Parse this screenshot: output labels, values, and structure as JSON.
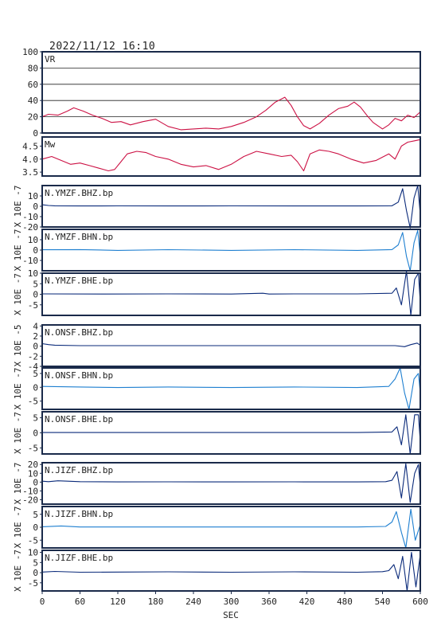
{
  "header": {
    "title": "2022/11/12  16:10"
  },
  "chart_data": {
    "type": "line",
    "xlabel": "SEC",
    "x_ticks": [
      0,
      60,
      120,
      180,
      240,
      300,
      360,
      420,
      480,
      540,
      600
    ],
    "xlim": [
      0,
      600
    ],
    "colors": {
      "vr_mw": "#cc1144",
      "bhz": "#0a2a7a",
      "bhn": "#1e7fd0",
      "bhe": "#0a2a7a",
      "frame": "#1a2a4a"
    },
    "panels": [
      {
        "label": "VR",
        "ylim": [
          0,
          100
        ],
        "ticks": [
          0,
          20,
          40,
          60,
          80,
          100
        ],
        "grid": true,
        "color": "vr_mw",
        "x": [
          0,
          10,
          25,
          40,
          50,
          65,
          80,
          95,
          110,
          125,
          140,
          160,
          180,
          200,
          220,
          240,
          260,
          280,
          300,
          320,
          340,
          355,
          370,
          385,
          395,
          405,
          415,
          425,
          440,
          455,
          470,
          485,
          495,
          505,
          515,
          525,
          540,
          550,
          560,
          570,
          580,
          590,
          600
        ],
        "y": [
          20,
          23,
          22,
          27,
          31,
          27,
          22,
          18,
          13,
          14,
          10,
          14,
          17,
          8,
          4,
          5,
          6,
          5,
          8,
          13,
          20,
          28,
          38,
          44,
          34,
          20,
          9,
          5,
          12,
          22,
          30,
          33,
          38,
          32,
          22,
          13,
          5,
          10,
          18,
          15,
          22,
          19,
          26
        ]
      },
      {
        "label": "Mw",
        "ylim": [
          3.35,
          4.85
        ],
        "ticks": [
          3.5,
          4.0,
          4.5
        ],
        "grid": false,
        "color": "vr_mw",
        "x": [
          0,
          15,
          30,
          45,
          60,
          75,
          90,
          105,
          115,
          125,
          135,
          150,
          165,
          180,
          200,
          220,
          240,
          260,
          280,
          300,
          320,
          340,
          360,
          380,
          395,
          405,
          415,
          425,
          440,
          455,
          470,
          490,
          510,
          530,
          550,
          560,
          570,
          580,
          590,
          600
        ],
        "y": [
          4.0,
          4.1,
          3.95,
          3.8,
          3.85,
          3.75,
          3.65,
          3.55,
          3.6,
          3.9,
          4.2,
          4.3,
          4.25,
          4.1,
          4.0,
          3.8,
          3.7,
          3.75,
          3.6,
          3.8,
          4.1,
          4.3,
          4.2,
          4.1,
          4.15,
          3.9,
          3.55,
          4.2,
          4.35,
          4.3,
          4.2,
          4.0,
          3.85,
          3.95,
          4.2,
          4.0,
          4.5,
          4.65,
          4.7,
          4.75
        ]
      },
      {
        "label": "N.YMZF.BHZ.bp",
        "exp": "X 10E -7",
        "ylim": [
          -20,
          20
        ],
        "ticks": [
          -20,
          -10,
          0,
          10
        ],
        "grid": false,
        "color": "bhz",
        "x": [
          0,
          10,
          20,
          60,
          120,
          200,
          300,
          400,
          500,
          555,
          565,
          572,
          578,
          584,
          590,
          596,
          600
        ],
        "y": [
          1.5,
          0.8,
          0.5,
          0.3,
          0.4,
          0.3,
          0.4,
          0.3,
          0.3,
          0.5,
          4,
          17,
          -4,
          -21,
          8,
          20,
          -8
        ]
      },
      {
        "label": "N.YMZF.BHN.bp",
        "exp": "X 10E -7",
        "ylim": [
          -20,
          20
        ],
        "ticks": [
          -10,
          0,
          10
        ],
        "grid": false,
        "color": "bhn",
        "x": [
          0,
          60,
          120,
          200,
          300,
          400,
          500,
          555,
          565,
          572,
          578,
          584,
          590,
          596,
          600
        ],
        "y": [
          0.3,
          0.5,
          -0.3,
          0.4,
          -0.3,
          0.4,
          -0.3,
          0.5,
          5,
          17,
          -6,
          -20,
          7,
          19,
          -6
        ]
      },
      {
        "label": "N.YMZF.BHE.bp",
        "exp": "X 10E -7",
        "ylim": [
          -10,
          10
        ],
        "ticks": [
          -5,
          0,
          5,
          10
        ],
        "grid": false,
        "color": "bhe",
        "x": [
          0,
          100,
          200,
          300,
          350,
          360,
          400,
          500,
          555,
          562,
          570,
          578,
          585,
          591,
          597,
          600
        ],
        "y": [
          0.2,
          0.1,
          0.2,
          0.1,
          0.5,
          0.1,
          0.2,
          0.2,
          0.5,
          3,
          -5,
          11,
          -10,
          7,
          10,
          -4
        ]
      },
      {
        "label": "N.ONSF.BHZ.bp",
        "exp": "X 10E -5",
        "ylim": [
          -4,
          4.2
        ],
        "ticks": [
          -4,
          -2,
          0,
          2,
          4
        ],
        "grid": false,
        "color": "bhz",
        "x": [
          0,
          10,
          20,
          60,
          120,
          200,
          300,
          400,
          500,
          560,
          575,
          585,
          595,
          600
        ],
        "y": [
          0.5,
          0.3,
          0.2,
          0.1,
          0.1,
          0.1,
          0.1,
          0.1,
          0.1,
          0.1,
          -0.1,
          0.3,
          0.6,
          0.2
        ]
      },
      {
        "label": "N.ONSF.BHN.bp",
        "exp": "X 10E -7",
        "ylim": [
          -8,
          7
        ],
        "ticks": [
          -5,
          0,
          5
        ],
        "grid": false,
        "color": "bhn",
        "x": [
          0,
          60,
          120,
          200,
          300,
          400,
          500,
          550,
          560,
          568,
          575,
          582,
          590,
          597,
          600
        ],
        "y": [
          0.3,
          0.1,
          -0.1,
          0.1,
          -0.1,
          0.1,
          -0.1,
          0.3,
          3,
          7,
          -2,
          -8,
          3,
          5,
          -2
        ]
      },
      {
        "label": "N.ONSF.BHE.bp",
        "exp": "X 10E -7",
        "ylim": [
          -7,
          7
        ],
        "ticks": [
          -5,
          0,
          5
        ],
        "grid": false,
        "color": "bhe",
        "x": [
          0,
          100,
          200,
          300,
          400,
          500,
          555,
          563,
          570,
          577,
          584,
          591,
          597,
          600
        ],
        "y": [
          0.1,
          0.1,
          0.1,
          0.1,
          0.1,
          0.1,
          0.3,
          2,
          -4,
          6,
          -7,
          6,
          6,
          -3
        ]
      },
      {
        "label": "N.JIZF.BHZ.bp",
        "exp": "X 10E -7",
        "ylim": [
          -25,
          22
        ],
        "ticks": [
          -20,
          -10,
          0,
          10,
          20
        ],
        "grid": false,
        "color": "bhz",
        "x": [
          0,
          10,
          25,
          60,
          120,
          200,
          300,
          400,
          500,
          545,
          555,
          563,
          570,
          577,
          584,
          591,
          597,
          600
        ],
        "y": [
          1,
          0.5,
          1.5,
          0.5,
          0.2,
          0.3,
          0.2,
          0.3,
          0.2,
          0.5,
          2,
          12,
          -18,
          21,
          -23,
          10,
          20,
          -5
        ]
      },
      {
        "label": "N.JIZF.BHN.bp",
        "exp": "X 10E -7",
        "ylim": [
          -8,
          8
        ],
        "ticks": [
          -5,
          0,
          5
        ],
        "grid": false,
        "color": "bhn",
        "x": [
          0,
          30,
          60,
          120,
          200,
          300,
          400,
          500,
          545,
          555,
          562,
          570,
          577,
          585,
          592,
          600
        ],
        "y": [
          0.2,
          0.5,
          0.1,
          0.1,
          0.1,
          0.1,
          0.1,
          0.1,
          0.3,
          2,
          6,
          -2,
          -8,
          7,
          -5,
          1
        ]
      },
      {
        "label": "N.JIZF.BHE.bp",
        "exp": "X 10E -7",
        "ylim": [
          -9,
          11
        ],
        "ticks": [
          -5,
          0,
          5,
          10
        ],
        "grid": false,
        "color": "bhe",
        "x": [
          0,
          20,
          60,
          120,
          200,
          300,
          400,
          500,
          540,
          550,
          558,
          565,
          572,
          579,
          586,
          593,
          600
        ],
        "y": [
          0.3,
          0.6,
          0.2,
          0.3,
          0.4,
          0.2,
          0.4,
          0.2,
          0.5,
          1,
          4,
          -3,
          8,
          -9,
          10,
          -7,
          9
        ]
      }
    ]
  }
}
